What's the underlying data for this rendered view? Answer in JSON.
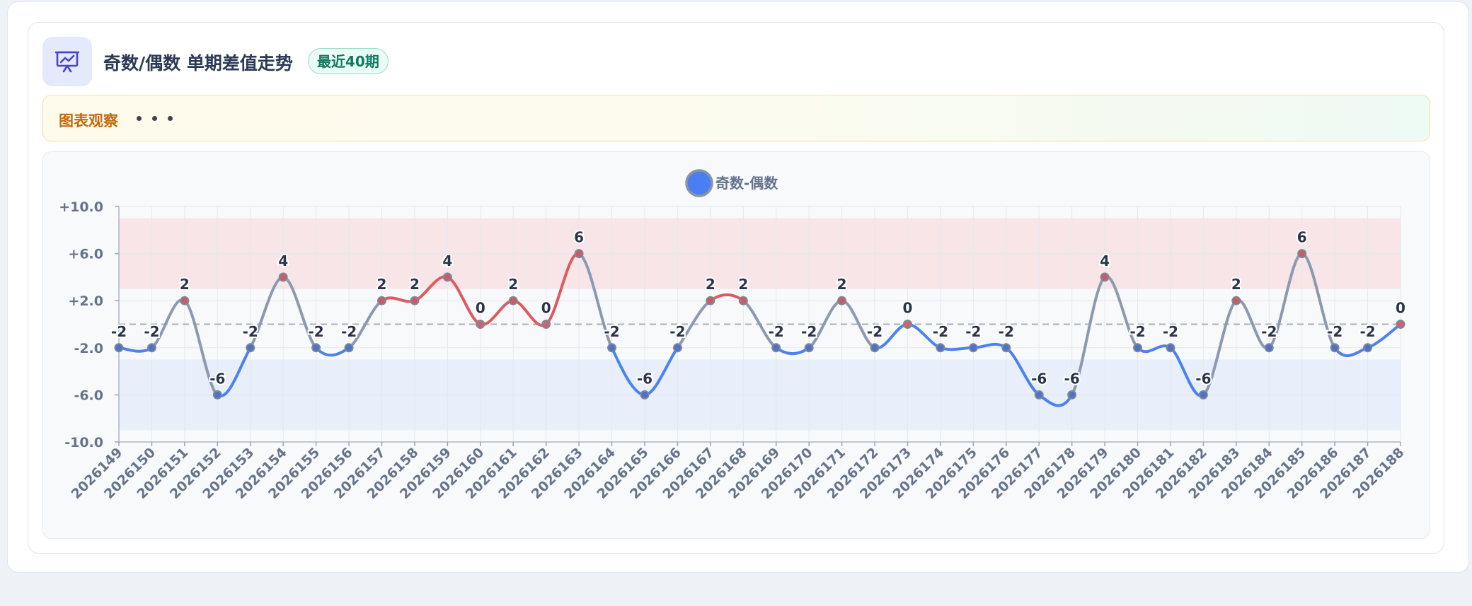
{
  "header": {
    "title": "奇数/偶数 单期差值走势",
    "badge": "最近40期"
  },
  "observation": {
    "label": "图表观察"
  },
  "colors": {
    "accent_blue": "#4b82ef",
    "positive_red": "#dd5a5e",
    "neutral_gray": "#8c9ab0",
    "band_high": "#f7e5e8",
    "band_low": "#e8eefa",
    "title_text": "#2d3a55",
    "badge_green": "#0f7a5f",
    "observation_orange": "#c46a10"
  },
  "chart_data": {
    "type": "line",
    "title": "奇数/偶数 单期差值走势",
    "legend_position": "top-center",
    "grid": true,
    "x": [
      "2026149",
      "2026150",
      "2026151",
      "2026152",
      "2026153",
      "2026154",
      "2026155",
      "2026156",
      "2026157",
      "2026158",
      "2026159",
      "2026160",
      "2026161",
      "2026162",
      "2026163",
      "2026164",
      "2026165",
      "2026166",
      "2026167",
      "2026168",
      "2026169",
      "2026170",
      "2026171",
      "2026172",
      "2026173",
      "2026174",
      "2026175",
      "2026176",
      "2026177",
      "2026178",
      "2026179",
      "2026180",
      "2026181",
      "2026182",
      "2026183",
      "2026184",
      "2026185",
      "2026186",
      "2026187",
      "2026188"
    ],
    "series": [
      {
        "name": "奇数-偶数",
        "values": [
          -2,
          -2,
          2,
          -6,
          -2,
          4,
          -2,
          -2,
          2,
          2,
          4,
          0,
          2,
          0,
          6,
          -2,
          -6,
          -2,
          2,
          2,
          -2,
          -2,
          2,
          -2,
          0,
          -2,
          -2,
          -2,
          -6,
          -6,
          4,
          -2,
          -2,
          -6,
          2,
          -2,
          6,
          -2,
          -2,
          0
        ]
      }
    ],
    "ylim": [
      -10,
      10
    ],
    "yticks": [
      "+10.0",
      "+6.0",
      "+2.0",
      "-2.0",
      "-6.0",
      "-10.0"
    ],
    "bands": [
      {
        "from": 3,
        "to": 9,
        "meaning": "high"
      },
      {
        "from": -9,
        "to": -3,
        "meaning": "low"
      }
    ],
    "reference_line": 0
  }
}
